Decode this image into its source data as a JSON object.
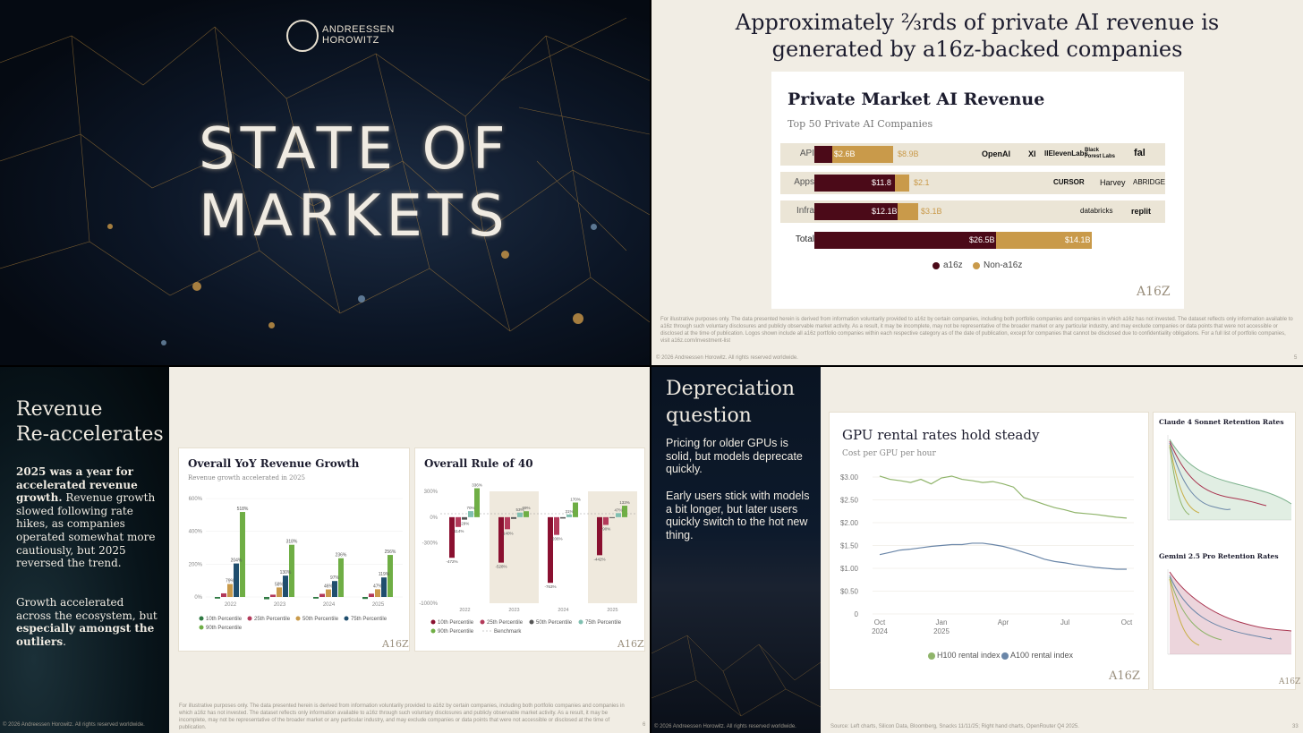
{
  "slide1": {
    "logo_line1": "ANDREESSEN",
    "logo_line2": "HOROWITZ",
    "title_line1": "STATE OF",
    "title_line2": "MARKETS"
  },
  "slide2": {
    "title_line1": "Approximately ⅔rds of private AI revenue is",
    "title_line2": "generated by a16z-backed companies",
    "card_title": "Private Market AI Revenue",
    "card_subtitle": "Top 50 Private AI Companies",
    "rows": [
      {
        "label": "API",
        "a16z": "$2.6B",
        "non": "$8.9B",
        "logos": [
          "OpenAI",
          "XI",
          "IIElevenLabs",
          "Black Forest Labs",
          "fal"
        ]
      },
      {
        "label": "Apps",
        "a16z": "$11.8",
        "non": "$2.1",
        "logos": [
          "CURSOR",
          "Harvey",
          "ABRIDGE"
        ]
      },
      {
        "label": "Infra",
        "a16z": "$12.1B",
        "non": "$3.1B",
        "logos": [
          "databricks",
          "replit"
        ]
      },
      {
        "label": "Total",
        "a16z": "$26.5B",
        "non": "$14.1B",
        "logos": []
      }
    ],
    "legend_a16z": "a16z",
    "legend_non": "Non-a16z",
    "mark": "A16Z",
    "footnote": "For illustrative purposes only. The data presented herein is derived from information voluntarily provided to a16z by certain companies, including both portfolio companies and companies in which a16z has not invested. The dataset reflects only information available to a16z through such voluntary disclosures and publicly observable market activity. As a result, it may be incomplete, may not be representative of the broader market or any particular industry, and may exclude companies or data points that were not accessible or disclosed at the time of publication. Logos shown include all a16z portfolio companies within each respective category as of the date of publication, except for companies that cannot be disclosed due to confidentiality obligations. For a full list of portfolio companies, visit a16z.com/investment-list",
    "copyright": "© 2026 Andreessen Horowitz. All rights reserved worldwide.",
    "page": "5",
    "colors": {
      "a16z": "#4b0a18",
      "non": "#c99a4a"
    }
  },
  "slide3": {
    "title_line1": "Revenue",
    "title_line2": "Re-accelerates",
    "body_bold1": "2025 was a year for accelerated revenue growth.",
    "body_rest1": " Revenue growth slowed following rate hikes, as companies operated somewhat more cautiously, but 2025 reversed the trend.",
    "body_p2a": "Growth accelerated across the ecosystem, but ",
    "body_p2b": "especially amongst the outliers",
    "body_p2c": ".",
    "copyright": "© 2026 Andreessen Horowitz. All rights reserved worldwide.",
    "footnote": "For illustrative purposes only. The data presented herein is derived from information voluntarily provided to a16z by certain companies, including both portfolio companies and companies in which a16z has not invested. The dataset reflects only information available to a16z through such voluntary disclosures and publicly observable market activity. As a result, it may be incomplete, may not be representative of the broader market or any particular industry, and may exclude companies or data points that were not accessible or disclosed at the time of publication.",
    "page": "6",
    "mark": "A16Z"
  },
  "slide4": {
    "title_line1": "Depreciation",
    "title_line2": "question",
    "p1": "Pricing for older GPUs is solid, but models deprecate quickly.",
    "p2": "Early users stick with models a bit longer, but later users quickly switch to the hot new thing.",
    "copyright": "© 2026 Andreessen Horowitz. All rights reserved worldwide.",
    "source": "Source: Left charts, Silicon Data, Bloomberg, Snacks 11/11/25; Right hand charts, OpenRouter Q4 2025.",
    "page": "33",
    "mark": "A16Z",
    "claude_title": "Claude 4 Sonnet Retention Rates",
    "gemini_title": "Gemini 2.5 Pro Retention Rates"
  },
  "chart_data": [
    {
      "type": "bar",
      "title": "Overall YoY Revenue Growth",
      "subtitle": "Revenue growth accelerated in 2025",
      "categories": [
        "2022",
        "2023",
        "2024",
        "2025"
      ],
      "series": [
        {
          "name": "10th Percentile",
          "color": "#2f7a43",
          "values": [
            -10,
            -14,
            -10,
            -12
          ]
        },
        {
          "name": "25th Percentile",
          "color": "#b33a5a",
          "values": [
            22,
            14,
            19,
            20
          ]
        },
        {
          "name": "50th Percentile",
          "color": "#c99a4a",
          "values": [
            79,
            58,
            46,
            47
          ]
        },
        {
          "name": "75th Percentile",
          "color": "#1f4e6e",
          "values": [
            204,
            130,
            97,
            119
          ]
        },
        {
          "name": "90th Percentile",
          "color": "#6fae45",
          "values": [
            518,
            318,
            236,
            256
          ]
        }
      ],
      "data_labels": [
        "518%",
        "204%",
        "79%",
        "318%",
        "130%",
        "58%",
        "236%",
        "97%",
        "46%",
        "256%",
        "119%",
        "47%"
      ],
      "yticks": [
        "0%",
        "200%",
        "400%",
        "600%"
      ],
      "ylim": [
        0,
        600
      ]
    },
    {
      "type": "bar",
      "title": "Overall Rule of 40",
      "categories": [
        "2022",
        "2023",
        "2024",
        "2025"
      ],
      "series": [
        {
          "name": "10th Percentile",
          "color": "#8a1030",
          "values": [
            -472,
            -528,
            -763,
            -442
          ]
        },
        {
          "name": "25th Percentile",
          "color": "#b33a5a",
          "values": [
            -114,
            -140,
            -206,
            -90
          ]
        },
        {
          "name": "50th Percentile",
          "color": "#555555",
          "values": [
            -29,
            -20,
            -16,
            -10
          ]
        },
        {
          "name": "75th Percentile",
          "color": "#7fbfb0",
          "values": [
            70,
            53,
            31,
            47
          ]
        },
        {
          "name": "90th Percentile",
          "color": "#6fae45",
          "values": [
            336,
            69,
            170,
            133
          ]
        }
      ],
      "data_labels": [
        "336%",
        "70%",
        "-29%",
        "-114%",
        "-472%",
        "69%",
        "53%",
        "-140%",
        "-528%",
        "170%",
        "31%",
        "-206%",
        "-763%",
        "133%",
        "47%",
        "-90%",
        "-442%"
      ],
      "benchmark_label": "Benchmark",
      "yticks": [
        "300%",
        "0%",
        "-300%",
        "-1000%"
      ],
      "ylim": [
        -1000,
        300
      ]
    },
    {
      "type": "line",
      "title": "GPU rental rates hold steady",
      "subtitle": "Cost per GPU per hour",
      "x_ticks": [
        "Oct\n2024",
        "Jan\n2025",
        "Apr",
        "Jul",
        "Oct"
      ],
      "y_ticks": [
        "$3.00",
        "$2.50",
        "$2.00",
        "$1.50",
        "$1.00",
        "$0.50",
        "0"
      ],
      "ylim": [
        0,
        3.0
      ],
      "series": [
        {
          "name": "H100 rental index",
          "color": "#8fb46a",
          "values": [
            3.02,
            2.95,
            2.92,
            2.88,
            2.95,
            2.85,
            2.98,
            3.02,
            2.95,
            2.92,
            2.88,
            2.9,
            2.85,
            2.78,
            2.55,
            2.48,
            2.4,
            2.33,
            2.28,
            2.22,
            2.2,
            2.18,
            2.15,
            2.12,
            2.1
          ]
        },
        {
          "name": "A100 rental index",
          "color": "#6a86a8",
          "values": [
            1.3,
            1.35,
            1.4,
            1.42,
            1.45,
            1.48,
            1.5,
            1.52,
            1.52,
            1.55,
            1.55,
            1.52,
            1.48,
            1.42,
            1.35,
            1.28,
            1.2,
            1.15,
            1.12,
            1.08,
            1.05,
            1.02,
            1.0,
            0.98,
            0.98
          ]
        }
      ]
    }
  ],
  "gpu_chart_labels": {
    "title": "GPU rental rates hold steady",
    "subtitle": "Cost per GPU per hour",
    "legend_h100": "H100 rental index",
    "legend_a100": "A100 rental index"
  }
}
